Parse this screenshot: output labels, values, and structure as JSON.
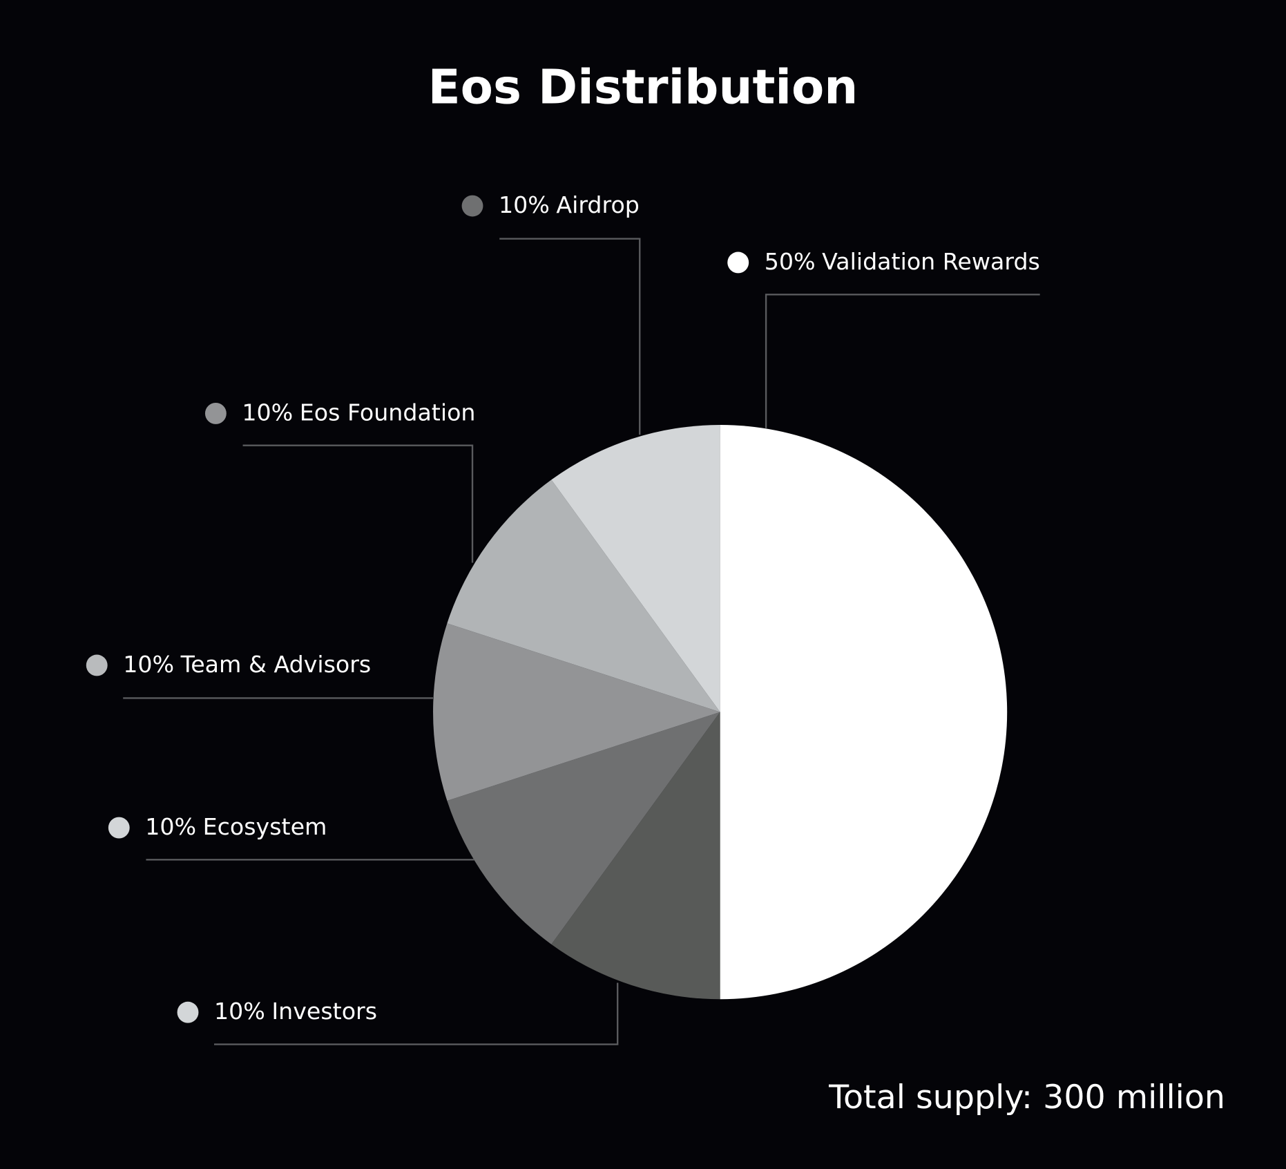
{
  "chart_data": {
    "type": "pie",
    "title": "Eos Distribution",
    "annotation": "Total supply: 300 million",
    "categories": [
      "Validation Rewards",
      "Investors",
      "Ecosystem",
      "Team & Advisors",
      "Eos Foundation",
      "Airdrop"
    ],
    "values": [
      50,
      10,
      10,
      10,
      10,
      10
    ],
    "value_labels": [
      "50%",
      "10%",
      "10%",
      "10%",
      "10%",
      "10%"
    ],
    "colors": [
      "#ffffff",
      "#585a58",
      "#6f7071",
      "#939496",
      "#b1b4b6",
      "#d3d6d8"
    ],
    "marker_colors": [
      "#ffffff",
      "#d3d6d8",
      "#d3d6d8",
      "#b9bbbd",
      "#939496",
      "#6f7071"
    ]
  }
}
